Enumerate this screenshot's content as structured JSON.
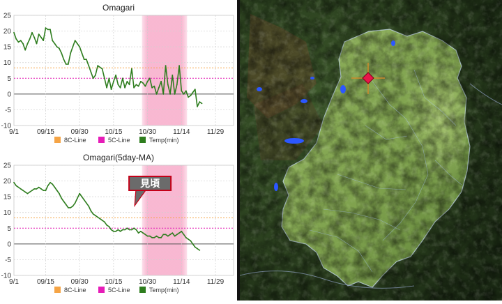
{
  "chart_data": [
    {
      "type": "line",
      "title": "Omagari",
      "ylim": [
        -10,
        25
      ],
      "yticks": [
        25,
        20,
        15,
        10,
        5,
        0,
        -5,
        -10
      ],
      "xticks": [
        "9/1",
        "09/15",
        "09/30",
        "10/15",
        "10/30",
        "11/14",
        "11/29"
      ],
      "grid": true,
      "shaded_range": [
        "10/30",
        "11/14"
      ],
      "reference_lines": [
        {
          "name": "8C-Line",
          "value": 8.3
        },
        {
          "name": "5C-Line",
          "value": 5
        }
      ],
      "series": [
        {
          "name": "Temp(min)",
          "x_start": "9/1",
          "values": [
            19.5,
            17.5,
            16.5,
            17,
            16,
            14,
            16,
            17.5,
            19.5,
            18,
            16,
            19,
            18,
            17,
            21,
            20.5,
            20.5,
            17,
            16,
            15,
            14.5,
            13,
            11,
            9.5,
            9.5,
            13,
            15,
            17,
            16,
            15,
            13,
            11,
            11,
            9,
            7,
            5,
            6,
            9,
            8.5,
            8,
            5,
            2,
            5,
            1.5,
            4,
            6,
            3,
            2,
            5,
            2,
            4,
            3,
            8,
            2,
            3,
            2.5,
            4,
            3.5,
            2.5,
            4,
            5,
            2,
            2.5,
            0,
            2,
            4,
            0,
            9,
            3,
            0,
            6,
            0,
            3,
            9,
            1,
            0,
            1,
            -1,
            -0.5,
            0.5,
            1.5,
            -4,
            -2.5,
            -3
          ]
        }
      ],
      "legend": [
        "8C-Line",
        "5C-Line",
        "Temp(min)"
      ],
      "legend_colors": [
        "#f5a445",
        "#e61cb8",
        "#2e7d1e"
      ]
    },
    {
      "type": "line",
      "title": "Omagari(5day-MA)",
      "ylim": [
        -10,
        25
      ],
      "yticks": [
        25,
        20,
        15,
        10,
        5,
        0,
        -5,
        -10
      ],
      "xticks": [
        "9/1",
        "09/15",
        "09/30",
        "10/15",
        "10/30",
        "11/14",
        "11/29"
      ],
      "grid": true,
      "shaded_range": [
        "10/30",
        "11/14"
      ],
      "annotation": {
        "text": "見頃",
        "points_to": "10/28"
      },
      "reference_lines": [
        {
          "name": "8C-Line",
          "value": 8.3
        },
        {
          "name": "5C-Line",
          "value": 5
        }
      ],
      "series": [
        {
          "name": "Temp(min)",
          "x_start": "9/1",
          "values": [
            19.5,
            18.5,
            18,
            17.5,
            17,
            16.5,
            16,
            16.5,
            17,
            17.5,
            17.5,
            18,
            17.5,
            17,
            17,
            18.5,
            19.5,
            19,
            18,
            17,
            16,
            14.5,
            13.5,
            12.5,
            11.5,
            11.5,
            12,
            13,
            14.5,
            16,
            15,
            14,
            13,
            12,
            10.5,
            9.5,
            9,
            8.5,
            8,
            7.5,
            7,
            6,
            5.5,
            4.5,
            4,
            4,
            4.5,
            4,
            4.5,
            4.5,
            5,
            4.5,
            4.5,
            5,
            4.5,
            3.5,
            4,
            3.5,
            3,
            2.5,
            2.5,
            2,
            2,
            2.5,
            2,
            2,
            3,
            3,
            2.5,
            3,
            3.5,
            2.5,
            3,
            3.5,
            4,
            3,
            2,
            1.5,
            1,
            0,
            -1,
            -1.5,
            -2
          ]
        }
      ],
      "legend": [
        "8C-Line",
        "5C-Line",
        "Temp(min)"
      ],
      "legend_colors": [
        "#f5a445",
        "#e61cb8",
        "#2e7d1e"
      ]
    }
  ],
  "map": {
    "marker_color": "#e8174a",
    "terrain_colors": [
      "#2f4a20",
      "#6f8f43",
      "#9db966",
      "#8a5f3a"
    ],
    "water_color": "#2c57ff"
  }
}
